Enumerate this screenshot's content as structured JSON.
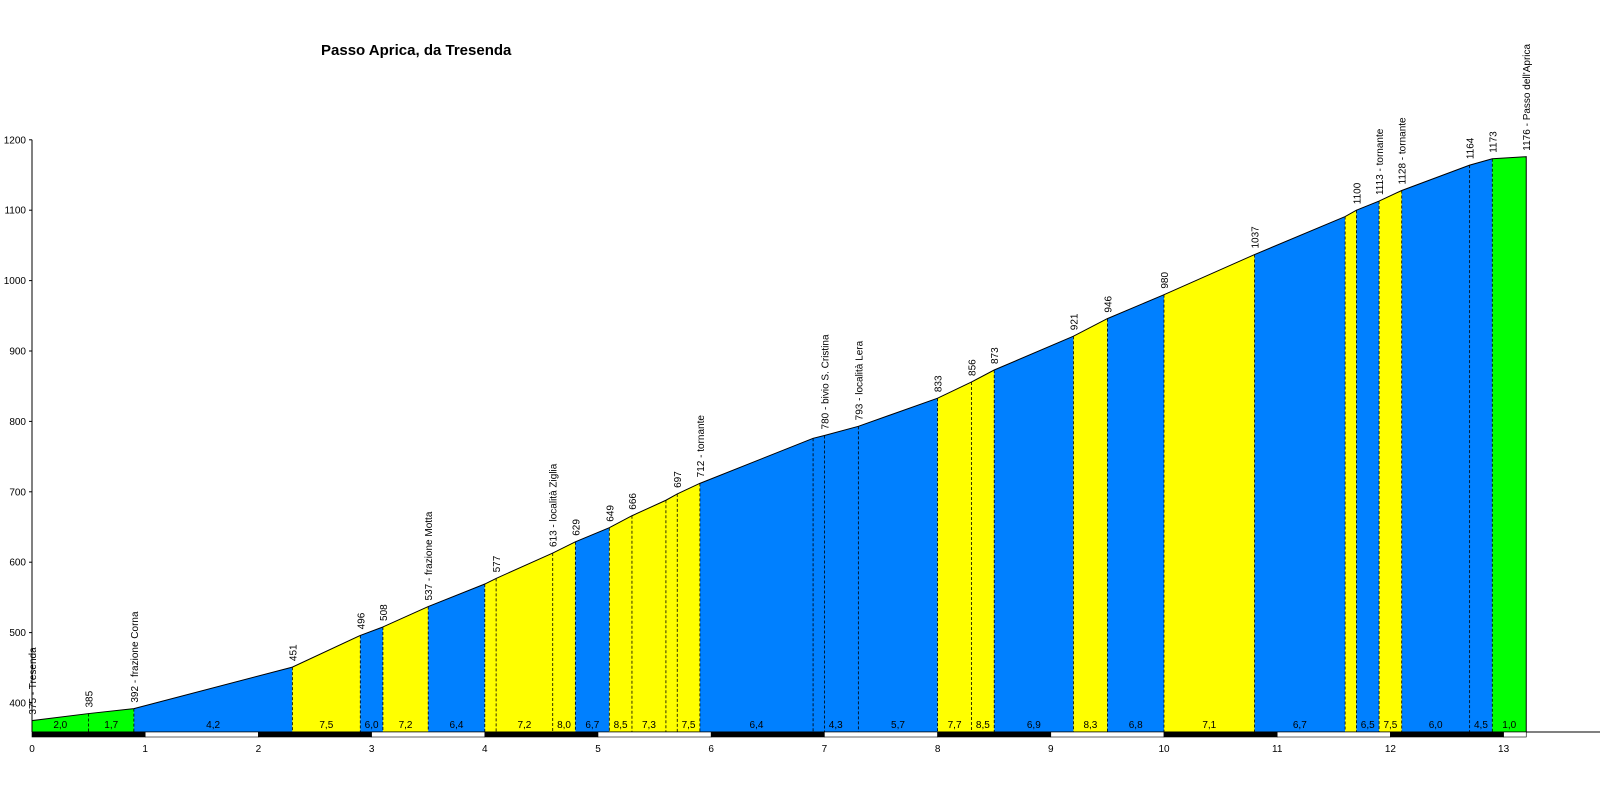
{
  "chart_data": {
    "type": "area",
    "title": "Passo Aprica, da Tresenda",
    "xlabel": "",
    "ylabel": "",
    "xlim": [
      0,
      13.2
    ],
    "ylim": [
      350,
      1200
    ],
    "x_ticks": [
      0,
      1,
      2,
      3,
      4,
      5,
      6,
      7,
      8,
      9,
      10,
      11,
      12,
      13
    ],
    "y_ticks": [
      400,
      500,
      600,
      700,
      800,
      900,
      1000,
      1100,
      1200
    ],
    "grid": false,
    "profile": [
      {
        "km": 0.0,
        "alt": 375,
        "label": "375 - Tresenda"
      },
      {
        "km": 0.5,
        "alt": 385,
        "label": "385"
      },
      {
        "km": 0.9,
        "alt": 392,
        "label": "392 - frazione Corna"
      },
      {
        "km": 2.3,
        "alt": 451,
        "label": "451"
      },
      {
        "km": 2.9,
        "alt": 496,
        "label": "496"
      },
      {
        "km": 3.1,
        "alt": 508,
        "label": "508"
      },
      {
        "km": 3.5,
        "alt": 537,
        "label": "537 - frazione Motta"
      },
      {
        "km": 4.0,
        "alt": 569,
        "label": ""
      },
      {
        "km": 4.1,
        "alt": 577,
        "label": "577"
      },
      {
        "km": 4.6,
        "alt": 613,
        "label": "613 - località Ziglia"
      },
      {
        "km": 4.8,
        "alt": 629,
        "label": "629"
      },
      {
        "km": 5.1,
        "alt": 649,
        "label": "649"
      },
      {
        "km": 5.3,
        "alt": 666,
        "label": "666"
      },
      {
        "km": 5.6,
        "alt": 688,
        "label": ""
      },
      {
        "km": 5.7,
        "alt": 697,
        "label": "697"
      },
      {
        "km": 5.9,
        "alt": 712,
        "label": "712 - tornante"
      },
      {
        "km": 6.9,
        "alt": 776,
        "label": ""
      },
      {
        "km": 7.0,
        "alt": 780,
        "label": "780 - bivio S. Cristina"
      },
      {
        "km": 7.3,
        "alt": 793,
        "label": "793 - località Lera"
      },
      {
        "km": 8.0,
        "alt": 833,
        "label": "833"
      },
      {
        "km": 8.3,
        "alt": 856,
        "label": "856"
      },
      {
        "km": 8.5,
        "alt": 873,
        "label": "873"
      },
      {
        "km": 9.2,
        "alt": 921,
        "label": "921"
      },
      {
        "km": 9.5,
        "alt": 946,
        "label": "946"
      },
      {
        "km": 10.0,
        "alt": 980,
        "label": "980"
      },
      {
        "km": 10.8,
        "alt": 1037,
        "label": "1037"
      },
      {
        "km": 11.6,
        "alt": 1091,
        "label": ""
      },
      {
        "km": 11.7,
        "alt": 1100,
        "label": "1100"
      },
      {
        "km": 11.9,
        "alt": 1113,
        "label": "1113 - tornante"
      },
      {
        "km": 12.1,
        "alt": 1128,
        "label": "1128 - tornante"
      },
      {
        "km": 12.7,
        "alt": 1164,
        "label": "1164"
      },
      {
        "km": 12.9,
        "alt": 1173,
        "label": "1173"
      },
      {
        "km": 13.2,
        "alt": 1176,
        "label": "1176 - Passo dell'Aprica"
      }
    ],
    "segments": [
      {
        "from": 0.0,
        "to": 0.9,
        "grade": [
          "2,0",
          "1,7"
        ],
        "color": "#00ff00"
      },
      {
        "from": 0.9,
        "to": 2.3,
        "grade": [
          "4,2"
        ],
        "color": "#0080ff"
      },
      {
        "from": 2.3,
        "to": 2.9,
        "grade": [
          "7,5"
        ],
        "color": "#ffff00"
      },
      {
        "from": 2.9,
        "to": 3.1,
        "grade": [
          "6,0"
        ],
        "color": "#0080ff"
      },
      {
        "from": 3.1,
        "to": 3.5,
        "grade": [
          "7,2"
        ],
        "color": "#ffff00"
      },
      {
        "from": 3.5,
        "to": 4.0,
        "grade": [
          "6,4"
        ],
        "color": "#0080ff"
      },
      {
        "from": 4.0,
        "to": 4.8,
        "grade": [
          "7,2",
          "8,0"
        ],
        "color": "#ffff00"
      },
      {
        "from": 4.8,
        "to": 5.1,
        "grade": [
          "6,7"
        ],
        "color": "#0080ff"
      },
      {
        "from": 5.1,
        "to": 5.9,
        "grade": [
          "8,5",
          "7,3",
          "7,5"
        ],
        "color": "#ffff00"
      },
      {
        "from": 5.9,
        "to": 8.0,
        "grade": [
          "6,4",
          "4,3",
          "5,7"
        ],
        "color": "#0080ff"
      },
      {
        "from": 8.0,
        "to": 8.5,
        "grade": [
          "7,7",
          "8,5"
        ],
        "color": "#ffff00"
      },
      {
        "from": 8.5,
        "to": 9.2,
        "grade": [
          "6,9"
        ],
        "color": "#0080ff"
      },
      {
        "from": 9.2,
        "to": 9.5,
        "grade": [
          "8,3"
        ],
        "color": "#ffff00"
      },
      {
        "from": 9.5,
        "to": 10.0,
        "grade": [
          "6,8"
        ],
        "color": "#0080ff"
      },
      {
        "from": 10.0,
        "to": 10.8,
        "grade": [
          "7,1"
        ],
        "color": "#ffff00"
      },
      {
        "from": 10.8,
        "to": 11.6,
        "grade": [
          "6,7"
        ],
        "color": "#0080ff"
      },
      {
        "from": 11.6,
        "to": 11.7,
        "grade": [],
        "color": "#ffff00"
      },
      {
        "from": 11.7,
        "to": 11.9,
        "grade": [
          "6,5"
        ],
        "color": "#0080ff"
      },
      {
        "from": 11.9,
        "to": 12.1,
        "grade": [
          "7,5"
        ],
        "color": "#ffff00"
      },
      {
        "from": 12.1,
        "to": 12.9,
        "grade": [
          "6,0",
          "4,5"
        ],
        "color": "#0080ff"
      },
      {
        "from": 12.9,
        "to": 13.2,
        "grade": [
          "1,0"
        ],
        "color": "#00ff00"
      }
    ],
    "grade_labels": [
      {
        "km": 0.25,
        "text": "2,0"
      },
      {
        "km": 0.7,
        "text": "1,7"
      },
      {
        "km": 1.6,
        "text": "4,2"
      },
      {
        "km": 2.6,
        "text": "7,5"
      },
      {
        "km": 3.0,
        "text": "6,0"
      },
      {
        "km": 3.3,
        "text": "7,2"
      },
      {
        "km": 3.75,
        "text": "6,4"
      },
      {
        "km": 4.35,
        "text": "7,2"
      },
      {
        "km": 4.7,
        "text": "8,0"
      },
      {
        "km": 4.95,
        "text": "6,7"
      },
      {
        "km": 5.2,
        "text": "8,5"
      },
      {
        "km": 5.45,
        "text": "7,3"
      },
      {
        "km": 5.8,
        "text": "7,5"
      },
      {
        "km": 6.4,
        "text": "6,4"
      },
      {
        "km": 7.1,
        "text": "4,3"
      },
      {
        "km": 7.65,
        "text": "5,7"
      },
      {
        "km": 8.15,
        "text": "7,7"
      },
      {
        "km": 8.4,
        "text": "8,5"
      },
      {
        "km": 8.85,
        "text": "6,9"
      },
      {
        "km": 9.35,
        "text": "8,3"
      },
      {
        "km": 9.75,
        "text": "6,8"
      },
      {
        "km": 10.4,
        "text": "7,1"
      },
      {
        "km": 11.2,
        "text": "6,7"
      },
      {
        "km": 11.8,
        "text": "6,5"
      },
      {
        "km": 12.0,
        "text": "7,5"
      },
      {
        "km": 12.4,
        "text": "6,0"
      },
      {
        "km": 12.8,
        "text": "4,5"
      },
      {
        "km": 13.05,
        "text": "1,0"
      }
    ],
    "colors": {
      "green": "#00ff00",
      "blue": "#0080ff",
      "yellow": "#ffff00",
      "axis": "#000000"
    }
  }
}
